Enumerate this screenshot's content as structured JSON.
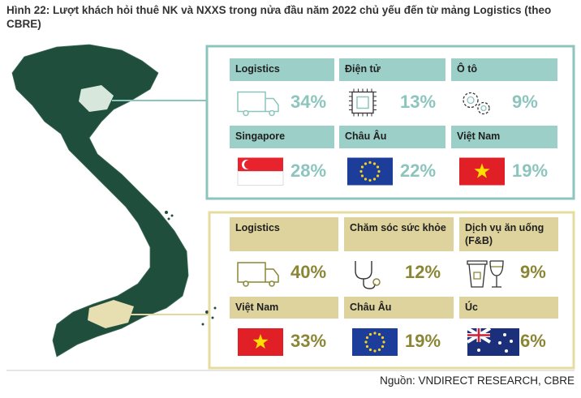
{
  "title": "Hình 22: Lượt khách hỏi thuê NK và NXXS trong nửa đầu năm 2022 chủ yếu đến từ mảng Logistics (theo CBRE)",
  "panels": [
    {
      "sectors": [
        {
          "label": "Logistics",
          "share": "34%"
        },
        {
          "label": "Điện tử",
          "share": "13%"
        },
        {
          "label": "Ô tô",
          "share": "9%"
        }
      ],
      "origins": [
        {
          "label": "Singapore",
          "share": "28%"
        },
        {
          "label": "Châu Âu",
          "share": "22%"
        },
        {
          "label": "Việt Nam",
          "share": "19%"
        }
      ]
    },
    {
      "sectors": [
        {
          "label": "Logistics",
          "share": "40%"
        },
        {
          "label": "Chăm sóc sức khỏe",
          "share": "12%"
        },
        {
          "label": "Dịch vụ ăn uống (F&B)",
          "share": "9%"
        }
      ],
      "origins": [
        {
          "label": "Việt Nam",
          "share": "33%"
        },
        {
          "label": "Châu Âu",
          "share": "19%"
        },
        {
          "label": "Úc",
          "share": "6%"
        }
      ]
    }
  ],
  "source": "Nguồn: VNDIRECT RESEARCH, CBRE"
}
